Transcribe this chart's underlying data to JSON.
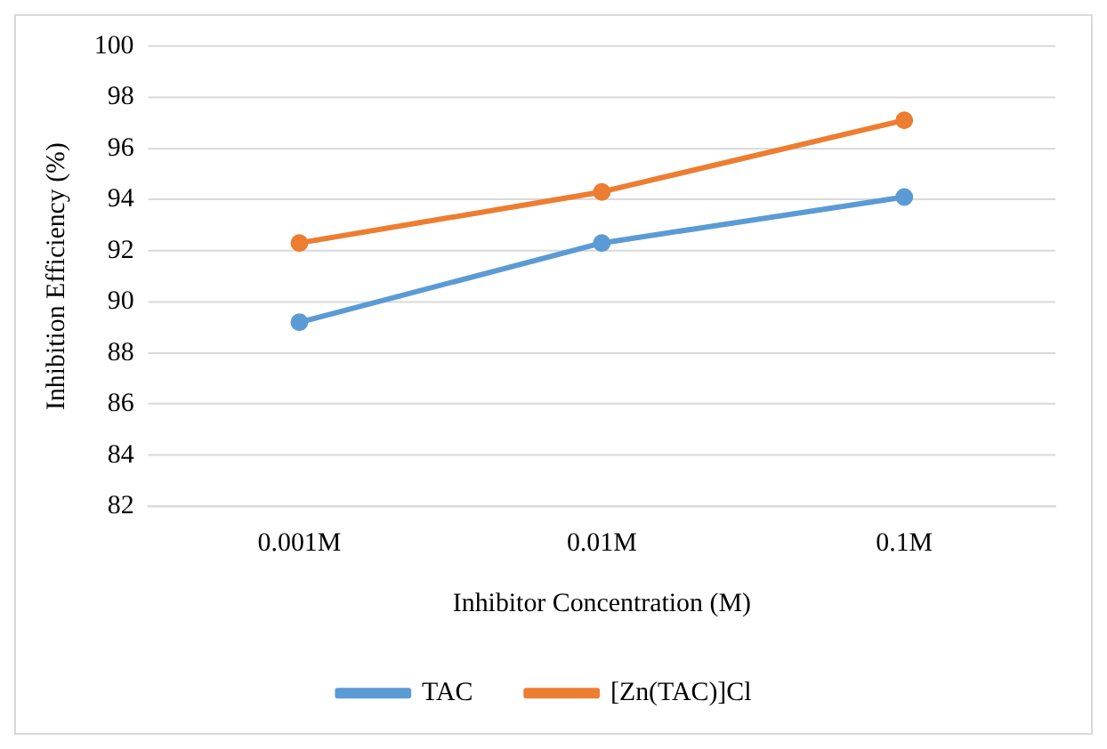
{
  "chart_data": {
    "type": "line",
    "xlabel": "Inhibitor Concentration (M)",
    "ylabel": "Inhibition Efficiency (%)",
    "categories": [
      "0.001M",
      "0.01M",
      "0.1M"
    ],
    "series": [
      {
        "name": "TAC",
        "color": "#5b9bd5",
        "values": [
          89.2,
          92.3,
          94.1
        ]
      },
      {
        "name": "[Zn(TAC)]Cl",
        "color": "#ed7d31",
        "values": [
          92.3,
          94.3,
          97.1
        ]
      }
    ],
    "ylim": [
      82,
      100
    ],
    "yticks": [
      82,
      84,
      86,
      88,
      90,
      92,
      94,
      96,
      98,
      100
    ],
    "grid": "y",
    "legend": "bottom",
    "marker": "circle",
    "line_style": "solid"
  }
}
